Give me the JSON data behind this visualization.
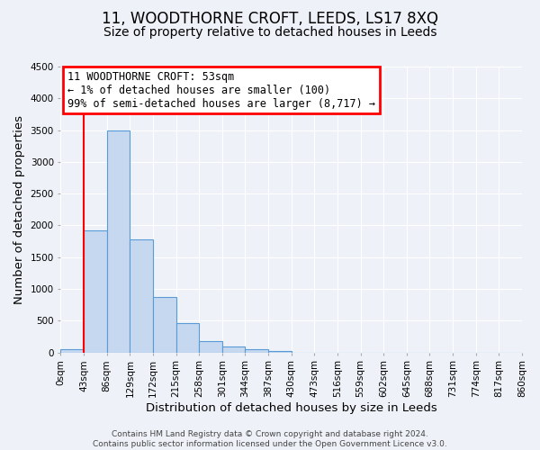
{
  "title": "11, WOODTHORNE CROFT, LEEDS, LS17 8XQ",
  "subtitle": "Size of property relative to detached houses in Leeds",
  "xlabel": "Distribution of detached houses by size in Leeds",
  "ylabel": "Number of detached properties",
  "bin_labels": [
    "0sqm",
    "43sqm",
    "86sqm",
    "129sqm",
    "172sqm",
    "215sqm",
    "258sqm",
    "301sqm",
    "344sqm",
    "387sqm",
    "430sqm",
    "473sqm",
    "516sqm",
    "559sqm",
    "602sqm",
    "645sqm",
    "688sqm",
    "731sqm",
    "774sqm",
    "817sqm",
    "860sqm"
  ],
  "bar_heights": [
    50,
    1920,
    3500,
    1780,
    870,
    460,
    185,
    100,
    50,
    30,
    0,
    0,
    0,
    0,
    0,
    0,
    0,
    0,
    0,
    0
  ],
  "bar_color": "#c5d8f0",
  "bar_edge_color": "#5b9bd5",
  "vline_x": 1,
  "vline_color": "red",
  "ylim": [
    0,
    4500
  ],
  "yticks": [
    0,
    500,
    1000,
    1500,
    2000,
    2500,
    3000,
    3500,
    4000,
    4500
  ],
  "annotation_title": "11 WOODTHORNE CROFT: 53sqm",
  "annotation_line1": "← 1% of detached houses are smaller (100)",
  "annotation_line2": "99% of semi-detached houses are larger (8,717) →",
  "annotation_box_color": "red",
  "footer_line1": "Contains HM Land Registry data © Crown copyright and database right 2024.",
  "footer_line2": "Contains public sector information licensed under the Open Government Licence v3.0.",
  "background_color": "#eef2f8",
  "grid_color": "white",
  "title_fontsize": 12,
  "subtitle_fontsize": 10,
  "axis_label_fontsize": 9.5,
  "tick_fontsize": 7.5,
  "annotation_fontsize": 8.5,
  "footer_fontsize": 6.5
}
